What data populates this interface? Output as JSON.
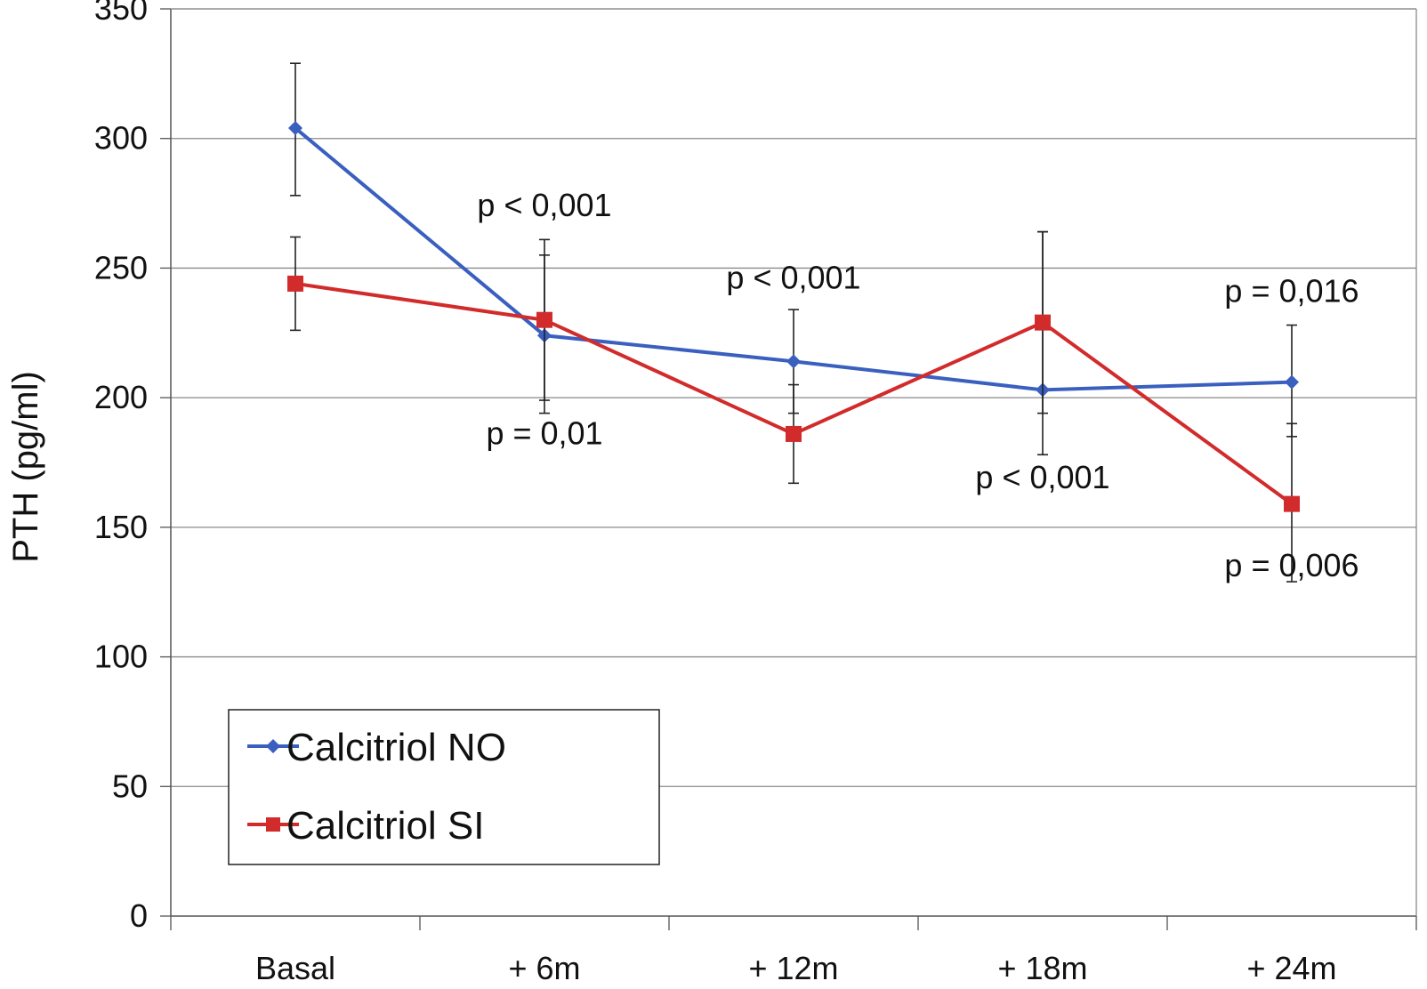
{
  "chart_data": {
    "type": "line",
    "title": "",
    "xlabel": "",
    "ylabel": "PTH (pg/ml)",
    "categories": [
      "Basal",
      "+ 6m",
      "+ 12m",
      "+ 18m",
      "+ 24m"
    ],
    "ylim": [
      0,
      350
    ],
    "yticks": [
      0,
      50,
      100,
      150,
      200,
      250,
      300,
      350
    ],
    "grid": true,
    "legend_position": "bottom-left",
    "series": [
      {
        "name": "Calcitriol NO",
        "color": "#3a5fbf",
        "marker": "diamond",
        "values": [
          304,
          224,
          214,
          203,
          206
        ],
        "error_low": [
          278,
          199,
          194,
          178,
          185
        ],
        "error_high": [
          329,
          255,
          234,
          264,
          228
        ]
      },
      {
        "name": "Calcitriol SI",
        "color": "#d22b2b",
        "marker": "square",
        "values": [
          244,
          230,
          186,
          229,
          159
        ],
        "error_low": [
          226,
          194,
          167,
          194,
          129
        ],
        "error_high": [
          262,
          261,
          205,
          264,
          190
        ]
      }
    ],
    "annotations": [
      {
        "text": "p < 0,001",
        "x": 1,
        "y": 270
      },
      {
        "text": "p = 0,01",
        "x": 1,
        "y": 182
      },
      {
        "text": "p < 0,001",
        "x": 2,
        "y": 242
      },
      {
        "text": "p < 0,001",
        "x": 3,
        "y": 165
      },
      {
        "text": "p = 0,016",
        "x": 4,
        "y": 237
      },
      {
        "text": "p = 0,006",
        "x": 4,
        "y": 131
      }
    ]
  }
}
